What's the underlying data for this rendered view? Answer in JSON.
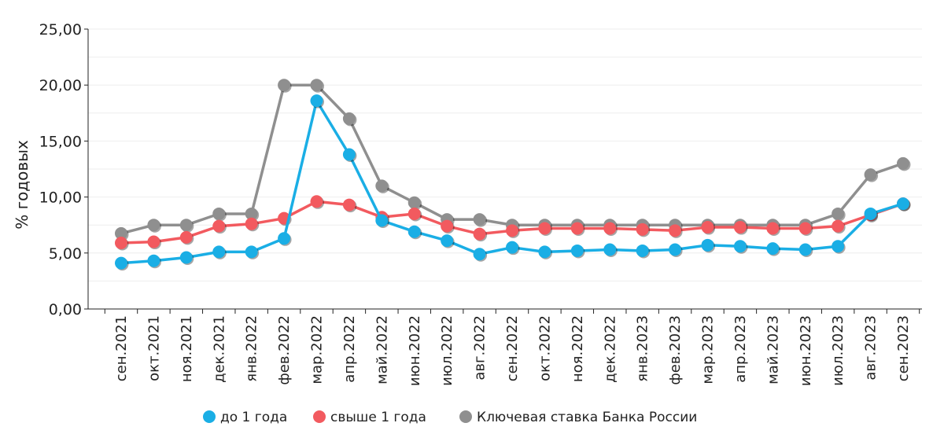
{
  "chart_data": {
    "type": "line",
    "title": "",
    "xlabel": "",
    "ylabel": "% годовых",
    "ylim": [
      0,
      25
    ],
    "yticks": [
      "0,00",
      "5,00",
      "10,00",
      "15,00",
      "20,00",
      "25,00"
    ],
    "ytick_values": [
      0,
      5,
      10,
      15,
      20,
      25
    ],
    "categories": [
      "сен.2021",
      "окт.2021",
      "ноя.2021",
      "дек.2021",
      "янв.2022",
      "фев.2022",
      "мар.2022",
      "апр.2022",
      "май.2022",
      "июн.2022",
      "июл.2022",
      "авг.2022",
      "сен.2022",
      "окт.2022",
      "ноя.2022",
      "дек.2022",
      "янв.2023",
      "фев.2023",
      "мар.2023",
      "апр.2023",
      "май.2023",
      "июн.2023",
      "июл.2023",
      "авг.2023",
      "сен.2023"
    ],
    "series": [
      {
        "name": "до 1 года",
        "color": "#1aaee5",
        "values": [
          4.1,
          4.3,
          4.6,
          5.1,
          5.1,
          6.3,
          18.6,
          13.8,
          7.9,
          6.9,
          6.1,
          4.9,
          5.5,
          5.1,
          5.2,
          5.3,
          5.2,
          5.3,
          5.7,
          5.6,
          5.4,
          5.3,
          5.6,
          8.5,
          9.4
        ]
      },
      {
        "name": "свыше 1 года",
        "color": "#f25a5f",
        "values": [
          5.9,
          6.0,
          6.4,
          7.4,
          7.6,
          8.1,
          9.6,
          9.3,
          8.2,
          8.5,
          7.4,
          6.7,
          7.0,
          7.2,
          7.2,
          7.2,
          7.1,
          7.0,
          7.3,
          7.3,
          7.2,
          7.2,
          7.4,
          8.4,
          9.4
        ]
      },
      {
        "name": "Ключевая ставка Банка России",
        "color": "#8f8f8f",
        "values": [
          6.75,
          7.5,
          7.5,
          8.5,
          8.5,
          20.0,
          20.0,
          17.0,
          11.0,
          9.5,
          8.0,
          8.0,
          7.5,
          7.5,
          7.5,
          7.5,
          7.5,
          7.5,
          7.5,
          7.5,
          7.5,
          7.5,
          8.5,
          12.0,
          13.0
        ]
      }
    ],
    "legend_position": "bottom",
    "grid": true
  }
}
